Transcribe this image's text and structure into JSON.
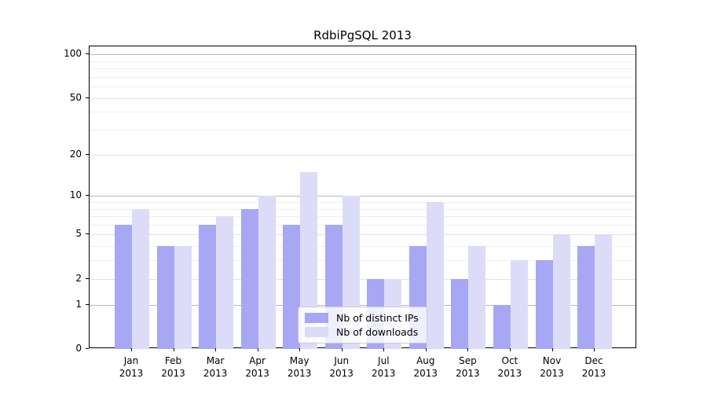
{
  "chart_data": {
    "type": "bar",
    "title": "RdbiPgSQL 2013",
    "categories": [
      "Jan",
      "Feb",
      "Mar",
      "Apr",
      "May",
      "Jun",
      "Jul",
      "Aug",
      "Sep",
      "Oct",
      "Nov",
      "Dec"
    ],
    "x_sublabel": "2013",
    "series": [
      {
        "name": "Nb of distinct IPs",
        "color": "#a7a7f3",
        "values": [
          6,
          4,
          6,
          8,
          6,
          6,
          2,
          4,
          2,
          1,
          3,
          4
        ]
      },
      {
        "name": "Nb of downloads",
        "color": "#dcdcf8",
        "values": [
          8,
          4,
          7,
          10,
          15,
          10,
          2,
          9,
          4,
          3,
          5,
          5
        ]
      }
    ],
    "y_axis": {
      "scale": "log10(1+x)",
      "ticks": [
        0,
        1,
        2,
        5,
        10,
        20,
        50,
        100
      ],
      "minor_gridlines": [
        3,
        4,
        6,
        7,
        8,
        9,
        30,
        40,
        60,
        70,
        80,
        90
      ],
      "decade_gridlines": [
        1,
        10,
        100
      ],
      "range_max": 113
    },
    "legend_position": "lower center",
    "grid": true,
    "palette": {
      "spine": "#000000",
      "decade_grid": "#b8b8b8",
      "major_grid": "#e2e2e2",
      "minor_grid": "#efefef",
      "legend_border": "#cccccc",
      "background": "#ffffff"
    }
  }
}
